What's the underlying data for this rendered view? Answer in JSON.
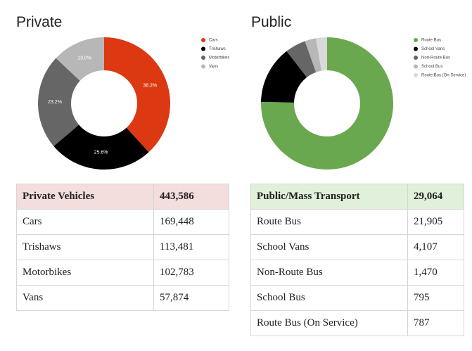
{
  "chart_data": [
    {
      "type": "pie",
      "variant": "donut",
      "title": "Private",
      "categories": [
        "Cars",
        "Trishaws",
        "Motorbikes",
        "Vans"
      ],
      "values": [
        38.2,
        25.6,
        23.2,
        13.0
      ],
      "data_labels": [
        "38.2%",
        "25.6%",
        "23.2%",
        "13.0%"
      ],
      "colors": [
        "#dc3912",
        "#000000",
        "#666666",
        "#b7b7b7"
      ],
      "label_colors": [
        "#ffffff",
        "#ffffff",
        "#ffffff",
        "#222222"
      ],
      "legend": "right"
    },
    {
      "type": "pie",
      "variant": "donut",
      "title": "Public",
      "categories": [
        "Route Bus",
        "School Vans",
        "Non-Route Bus",
        "School Bus",
        "Route Bus (On Service)"
      ],
      "values": [
        21905,
        4107,
        1470,
        795,
        787
      ],
      "data_labels": [
        "",
        "",
        "",
        "",
        ""
      ],
      "colors": [
        "#6aa84f",
        "#000000",
        "#666666",
        "#b7b7b7",
        "#d9d9d9"
      ],
      "label_colors": [
        "#ffffff",
        "#ffffff",
        "#ffffff",
        "#222222",
        "#222222"
      ],
      "legend": "right"
    }
  ],
  "tables": {
    "private": {
      "header": [
        "Private Vehicles",
        "443,586"
      ],
      "rows": [
        [
          "Cars",
          "169,448"
        ],
        [
          "Trishaws",
          "113,481"
        ],
        [
          "Motorbikes",
          "102,783"
        ],
        [
          "Vans",
          "57,874"
        ]
      ]
    },
    "public": {
      "header": [
        "Public/Mass Transport",
        "29,064"
      ],
      "rows": [
        [
          "Route Bus",
          "21,905"
        ],
        [
          "School Vans",
          "4,107"
        ],
        [
          "Non-Route Bus",
          "1,470"
        ],
        [
          "School Bus",
          "795"
        ],
        [
          "Route Bus (On Service)",
          "787"
        ]
      ]
    }
  }
}
